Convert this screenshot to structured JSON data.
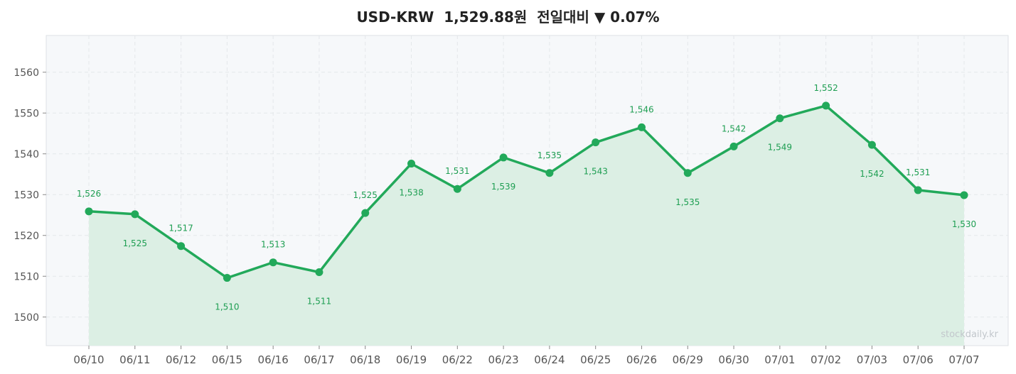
{
  "title": "USD-KRW  1,529.88원  전일대비 ▼ 0.07%",
  "watermark": "stockdaily.kr",
  "colors": {
    "line": "#22a95a",
    "area": "#dcefe4",
    "plot_bg": "#f6f8fa",
    "grid": "#e4e7ea",
    "label": "#1e9e52"
  },
  "chart_data": {
    "type": "line",
    "title": "USD-KRW  1,529.88원  전일대비 ▼ 0.07%",
    "xlabel": "",
    "ylabel": "",
    "ylim": [
      1493,
      1569
    ],
    "yticks": [
      1500,
      1510,
      1520,
      1530,
      1540,
      1550,
      1560
    ],
    "grid": true,
    "area_fill": true,
    "categories": [
      "06/10",
      "06/11",
      "06/12",
      "06/15",
      "06/16",
      "06/17",
      "06/18",
      "06/19",
      "06/22",
      "06/23",
      "06/24",
      "06/25",
      "06/26",
      "06/29",
      "06/30",
      "07/01",
      "07/02",
      "07/03",
      "07/06",
      "07/07"
    ],
    "values": [
      1525.9,
      1525.2,
      1517.4,
      1509.6,
      1513.4,
      1511.0,
      1525.5,
      1537.6,
      1531.4,
      1539.1,
      1535.3,
      1542.8,
      1546.5,
      1535.3,
      1541.8,
      1548.7,
      1551.8,
      1542.2,
      1531.1,
      1529.88
    ],
    "data_labels": [
      "1,526",
      "1,525",
      "1,517",
      "1,510",
      "1,513",
      "1,511",
      "1,525",
      "1,538",
      "1,531",
      "1,539",
      "1,535",
      "1,543",
      "1,546",
      "1,535",
      "1,542",
      "1,549",
      "1,552",
      "1,542",
      "1,531",
      "1,530"
    ],
    "label_positions": [
      "above",
      "below",
      "above",
      "below",
      "above",
      "below",
      "above",
      "below",
      "above",
      "below",
      "above",
      "below",
      "above",
      "below",
      "above",
      "below",
      "above",
      "below",
      "above",
      "below"
    ]
  }
}
